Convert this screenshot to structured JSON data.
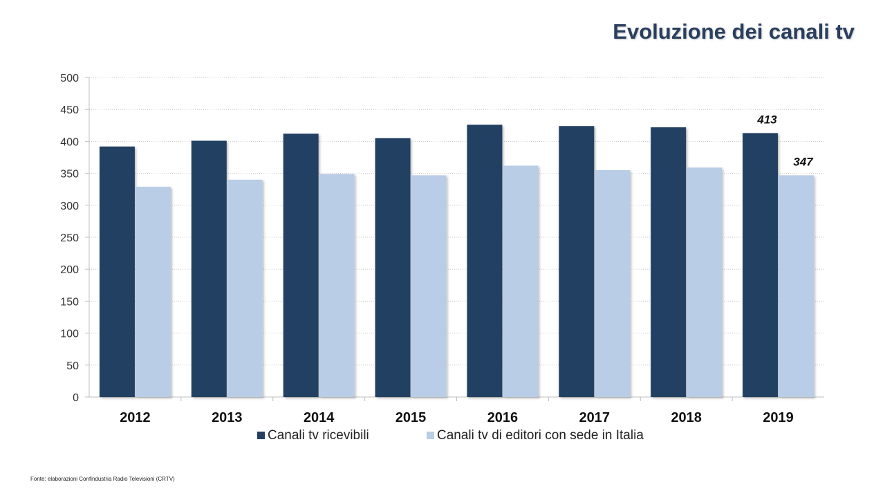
{
  "slide": {
    "title": "Evoluzione dei canali tv",
    "source": "Fonte: elaborazioni Confindustria Radio Televisioni (CRTV)"
  },
  "colors": {
    "title": "#2a3f5f",
    "series_dark": "#243f62",
    "series_light": "#b9cde6",
    "grid": "#c8c8c8",
    "axis": "#bfbfbf"
  },
  "chart_data": {
    "type": "bar",
    "categories": [
      "2012",
      "2013",
      "2014",
      "2015",
      "2016",
      "2017",
      "2018",
      "2019"
    ],
    "series": [
      {
        "name": "Canali tv ricevibili",
        "values": [
          392,
          401,
          412,
          405,
          426,
          424,
          422,
          413
        ]
      },
      {
        "name": "Canali tv di editori con sede in Italia",
        "values": [
          329,
          340,
          349,
          347,
          362,
          355,
          359,
          347
        ]
      }
    ],
    "data_labels": [
      {
        "series": 0,
        "category": "2019",
        "text": "413"
      },
      {
        "series": 1,
        "category": "2019",
        "text": "347"
      }
    ],
    "yticks": [
      "0",
      "50",
      "100",
      "150",
      "200",
      "250",
      "300",
      "350",
      "400",
      "450",
      "500"
    ],
    "ylim": [
      0,
      500
    ],
    "grid": true,
    "legend_position": "bottom"
  }
}
